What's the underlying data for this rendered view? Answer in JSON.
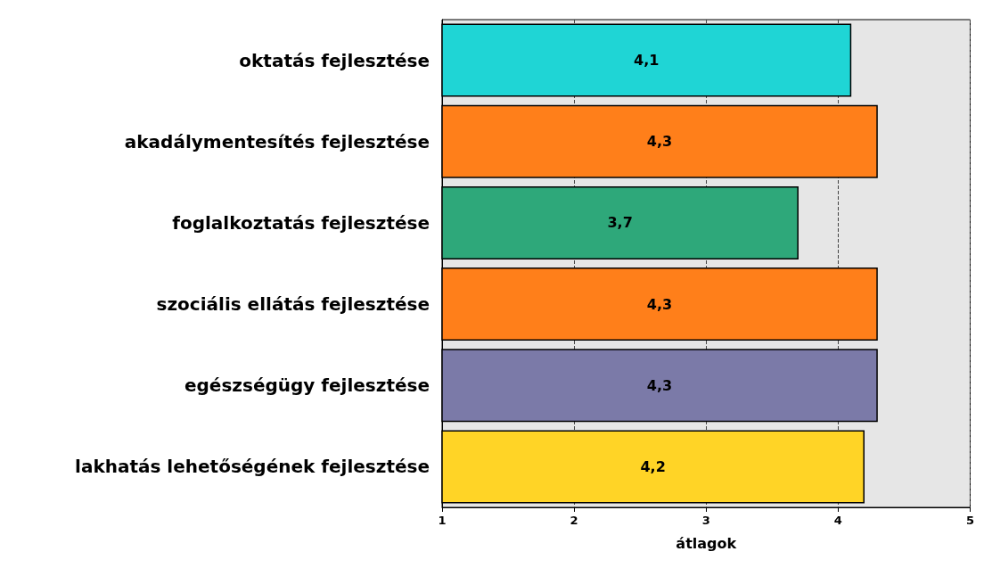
{
  "chart_data": {
    "type": "bar",
    "orientation": "horizontal",
    "xlabel": "átlagok",
    "categories": [
      "oktatás fejlesztése",
      "akadálymentesítés fejlesztése",
      "foglalkoztatás fejlesztése",
      "szociális ellátás fejlesztése",
      "egészségügy fejlesztése",
      "lakhatás lehetőségének fejlesztése"
    ],
    "values": [
      4.1,
      4.3,
      3.7,
      4.3,
      4.3,
      4.2
    ],
    "value_labels": [
      "4,1",
      "4,3",
      "3,7",
      "4,3",
      "4,3",
      "4,2"
    ],
    "colors": [
      "#1fd5d5",
      "#ff7f1a",
      "#2ea87a",
      "#ff7f1a",
      "#7b7aa8",
      "#ffd426"
    ],
    "xlim": [
      1,
      5
    ],
    "xticks": [
      1,
      2,
      3,
      4,
      5
    ],
    "grid": "x"
  }
}
